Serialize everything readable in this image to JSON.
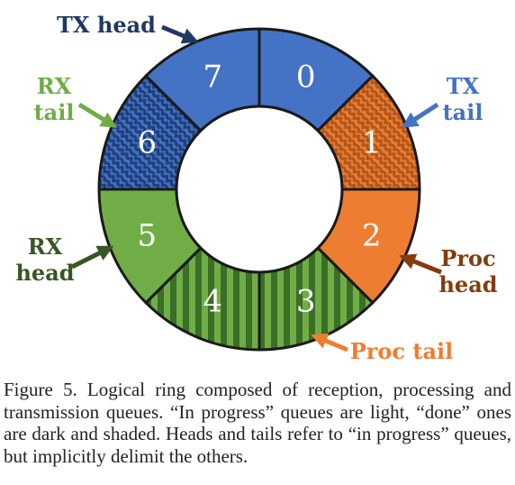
{
  "colors": {
    "blue": "#4472c4",
    "blue_dark": "#1f3f7a",
    "orange": "#ed7d31",
    "orange_dark": "#b0561c",
    "green": "#70ad47",
    "green_dark": "#3b6e26",
    "outline": "#1a1a1a",
    "label_navy": "#1f3864",
    "label_green": "#70ad47",
    "label_green_dark": "#375623",
    "label_blue": "#4472c4",
    "label_brown": "#843c0c",
    "label_orange": "#ed7d31"
  },
  "segments": [
    {
      "number": "0",
      "queue": "transmission",
      "state": "in progress",
      "pattern": "solid",
      "color": "#4472c4"
    },
    {
      "number": "1",
      "queue": "processing",
      "state": "done",
      "pattern": "zigzag",
      "color": "#ed7d31",
      "color_dark": "#b0561c"
    },
    {
      "number": "2",
      "queue": "processing",
      "state": "in progress",
      "pattern": "solid",
      "color": "#ed7d31"
    },
    {
      "number": "3",
      "queue": "reception",
      "state": "done",
      "pattern": "stripes",
      "color": "#70ad47",
      "color_dark": "#3b6e26"
    },
    {
      "number": "4",
      "queue": "reception",
      "state": "done",
      "pattern": "stripes",
      "color": "#70ad47",
      "color_dark": "#3b6e26"
    },
    {
      "number": "5",
      "queue": "reception",
      "state": "in progress",
      "pattern": "solid",
      "color": "#70ad47"
    },
    {
      "number": "6",
      "queue": "transmission",
      "state": "done",
      "pattern": "zigzag",
      "color": "#4472c4",
      "color_dark": "#1f3f7a"
    },
    {
      "number": "7",
      "queue": "transmission",
      "state": "in progress",
      "pattern": "solid",
      "color": "#4472c4"
    }
  ],
  "labels": {
    "tx_head": {
      "lines": [
        "TX head"
      ],
      "color": "#1f3864"
    },
    "rx_tail": {
      "lines": [
        "RX",
        "tail"
      ],
      "color": "#70ad47"
    },
    "tx_tail": {
      "lines": [
        "TX",
        "tail"
      ],
      "color": "#4472c4"
    },
    "rx_head": {
      "lines": [
        "RX",
        "head"
      ],
      "color": "#375623"
    },
    "proc_head": {
      "lines": [
        "Proc",
        "head"
      ],
      "color": "#843c0c"
    },
    "proc_tail": {
      "lines": [
        "Proc tail"
      ],
      "color": "#ed7d31"
    }
  },
  "caption": "Figure 5. Logical ring composed of reception, processing and transmission queues. “In progress” queues are light, “done” ones are dark and shaded. Heads and tails refer to “in progress” queues, but implicitly delimit the others."
}
